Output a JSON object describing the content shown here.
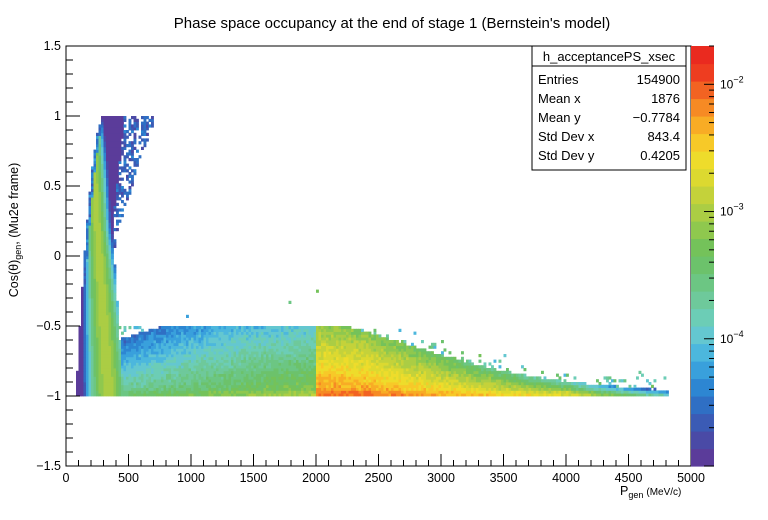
{
  "chart_data": {
    "type": "heatmap",
    "title": "Phase space occupancy at the end of stage 1 (Bernstein's model)",
    "xlabel": {
      "main": "P",
      "sub": "gen",
      "unit": "(MeV/c)"
    },
    "ylabel": {
      "main": "Cos(θ)",
      "sub": "gen",
      "rest": ", (Mu2e frame)"
    },
    "xlim": [
      0,
      5000
    ],
    "ylim": [
      -1.5,
      1.5
    ],
    "xticks": [
      {
        "value": 0,
        "label": "0"
      },
      {
        "value": 500,
        "label": "500"
      },
      {
        "value": 1000,
        "label": "1000"
      },
      {
        "value": 1500,
        "label": "1500"
      },
      {
        "value": 2000,
        "label": "2000"
      },
      {
        "value": 2500,
        "label": "2500"
      },
      {
        "value": 3000,
        "label": "3000"
      },
      {
        "value": 3500,
        "label": "3500"
      },
      {
        "value": 4000,
        "label": "4000"
      },
      {
        "value": 4500,
        "label": "4500"
      },
      {
        "value": 5000,
        "label": "5000"
      }
    ],
    "yticks": [
      {
        "value": -1.5,
        "label": "−1.5"
      },
      {
        "value": -1,
        "label": "−1"
      },
      {
        "value": -0.5,
        "label": "−0.5"
      },
      {
        "value": 0,
        "label": "0"
      },
      {
        "value": 0.5,
        "label": "0.5"
      },
      {
        "value": 1,
        "label": "1"
      },
      {
        "value": 1.5,
        "label": "1.5"
      }
    ],
    "z_scale": "log",
    "z_range": [
      1e-05,
      0.02
    ],
    "z_ticks": [
      {
        "exp": -4,
        "base": "10",
        "sup": "−4"
      },
      {
        "exp": -3,
        "base": "10",
        "sup": "−3"
      },
      {
        "exp": -2,
        "base": "10",
        "sup": "−2"
      }
    ],
    "palette": [
      "#5b3c9a",
      "#4a4aa6",
      "#3b5bb5",
      "#2f6fc4",
      "#2d86d2",
      "#39a0dc",
      "#4cb7dd",
      "#64c7d0",
      "#6ccdb6",
      "#6ec99b",
      "#6cc683",
      "#6cc26b",
      "#74c25a",
      "#8fc84e",
      "#abcd44",
      "#c4d23a",
      "#dcd930",
      "#eedc2b",
      "#f7c928",
      "#f8ac25",
      "#f68a24",
      "#f26322",
      "#ee3d20",
      "#ea2a1f"
    ],
    "stats_box": {
      "name": "h_acceptancePS_xsec",
      "rows": [
        {
          "label": "Entries",
          "value": "154900"
        },
        {
          "label": "Mean x",
          "value": "1876"
        },
        {
          "label": "Mean y",
          "value": "−0.7784"
        },
        {
          "label": "Std Dev x",
          "value": "843.4"
        },
        {
          "label": "Std Dev y",
          "value": "0.4205"
        }
      ]
    },
    "density_regions": [
      {
        "description": "low-momentum band",
        "x": [
          80,
          400
        ],
        "y": [
          -1.0,
          1.0
        ]
      },
      {
        "description": "high-momentum band along Cos=-1",
        "x": [
          300,
          4800
        ],
        "y": [
          -1.0,
          -0.55
        ]
      },
      {
        "description": "peak",
        "x": [
          2000,
          3200
        ],
        "y": [
          -1.0,
          -0.9
        ]
      }
    ]
  }
}
